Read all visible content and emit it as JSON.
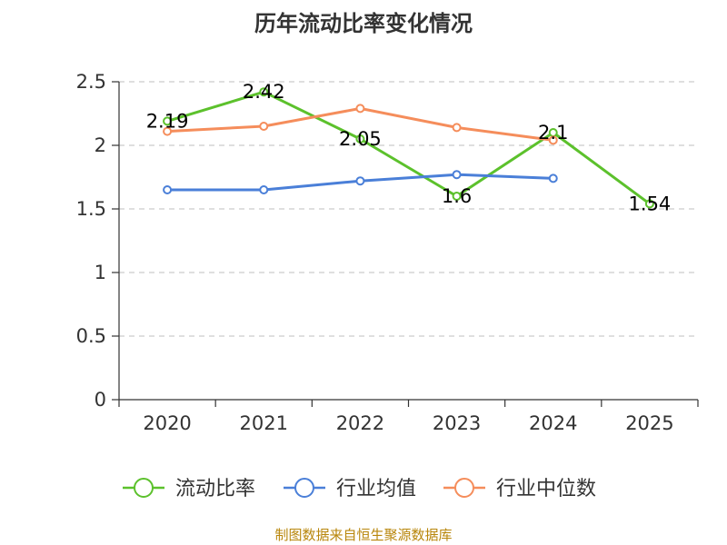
{
  "chart_data": {
    "type": "line",
    "title": "历年流动比率变化情况",
    "categories": [
      "2020",
      "2021",
      "2022",
      "2023",
      "2024",
      "2025"
    ],
    "y_ticks": [
      "0",
      "0.5",
      "1",
      "1.5",
      "2",
      "2.5"
    ],
    "ylim": [
      0,
      2.5
    ],
    "grid": true,
    "legend_position": "bottom",
    "series": [
      {
        "name": "流动比率",
        "color": "#5cc12c",
        "values": [
          2.19,
          2.42,
          2.05,
          1.6,
          2.1,
          1.54
        ],
        "labels": [
          "2.19",
          "2.42",
          "2.05",
          "1.6",
          "2.1",
          "1.54"
        ]
      },
      {
        "name": "行业均值",
        "color": "#4a7fd8",
        "values": [
          1.65,
          1.65,
          1.72,
          1.77,
          1.74,
          null
        ]
      },
      {
        "name": "行业中位数",
        "color": "#f58d5b",
        "values": [
          2.11,
          2.15,
          2.29,
          2.14,
          2.04,
          null
        ]
      }
    ]
  },
  "footer": {
    "source": "制图数据来自恒生聚源数据库"
  }
}
